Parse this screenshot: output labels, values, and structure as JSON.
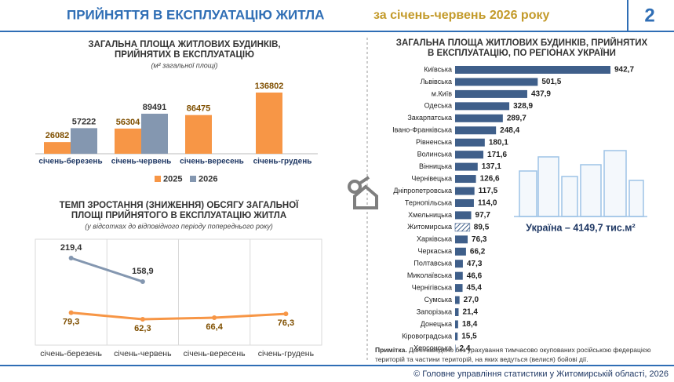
{
  "header": {
    "title": "ПРИЙНЯТТЯ В ЕКСПЛУАТАЦІЮ ЖИТЛА",
    "subtitle": "за січень-червень  2026 року",
    "page": "2"
  },
  "chart_data": [
    {
      "type": "bar",
      "title": [
        "ЗАГАЛЬНА ПЛОЩА ЖИТЛОВИХ БУДИНКІВ,",
        "ПРИЙНЯТИХ В ЕКСПЛУАТАЦІЮ"
      ],
      "subtitle": "(м² загальної площі)",
      "categories": [
        "січень-березень",
        "січень-червень",
        "січень-вересень",
        "січень-грудень"
      ],
      "series": [
        {
          "name": "2025",
          "color": "#f79646",
          "values": [
            26082,
            56304,
            86475,
            136802
          ]
        },
        {
          "name": "2026",
          "color": "#8497b0",
          "values": [
            57222,
            89491,
            null,
            null
          ]
        }
      ]
    },
    {
      "type": "line",
      "title": [
        "ТЕМП ЗРОСТАННЯ (ЗНИЖЕННЯ) ОБСЯГУ ЗАГАЛЬНОЇ",
        "ПЛОЩІ ПРИЙНЯТОГО В ЕКСПЛУАТАЦІЮ ЖИТЛА"
      ],
      "subtitle": "(у відсотках до відповідного періоду попереднього року)",
      "categories": [
        "січень-березень",
        "січень-червень",
        "січень-вересень",
        "січень-грудень"
      ],
      "series": [
        {
          "color": "#f79646",
          "values": [
            79.3,
            62.3,
            66.4,
            76.3
          ],
          "value_labels": [
            "79,3",
            "62,3",
            "66,4",
            "76,3"
          ]
        },
        {
          "color": "#8497b0",
          "values": [
            219.4,
            158.9,
            null,
            null
          ],
          "value_labels": [
            "219,4",
            "158,9",
            null,
            null
          ]
        }
      ]
    },
    {
      "type": "barh",
      "title": [
        "ЗАГАЛЬНА ПЛОЩА ЖИТЛОВИХ БУДИНКІВ, ПРИЙНЯТИХ",
        "В ЕКСПЛУАТАЦІЮ, ПО РЕГІОНАХ УКРАЇНИ"
      ],
      "categories": [
        "Київська",
        "Львівська",
        "м.Київ",
        "Одеська",
        "Закарпатська",
        "Івано-Франківська",
        "Рівненська",
        "Волинська",
        "Вінницька",
        "Чернівецька",
        "Дніпропетровська",
        "Тернопільська",
        "Хмельницька",
        "Житомирська",
        "Харківська",
        "Черкаська",
        "Полтавська",
        "Миколаївська",
        "Чернігівська",
        "Сумська",
        "Запорізька",
        "Донецька",
        "Кіровоградська",
        "Херсонська"
      ],
      "values": [
        942.7,
        501.5,
        437.9,
        328.9,
        289.7,
        248.4,
        180.1,
        171.6,
        137.1,
        126.6,
        117.5,
        114.0,
        97.7,
        89.5,
        76.3,
        66.2,
        47.3,
        46.6,
        45.4,
        27.0,
        21.4,
        18.4,
        15.5,
        2.4
      ],
      "value_labels": [
        "942,7",
        "501,5",
        "437,9",
        "328,9",
        "289,7",
        "248,4",
        "180,1",
        "171,6",
        "137,1",
        "126,6",
        "117,5",
        "114,0",
        "97,7",
        "89,5",
        "76,3",
        "66,2",
        "47,3",
        "46,6",
        "45,4",
        "27,0",
        "21,4",
        "18,4",
        "15,5",
        "2,4"
      ],
      "color": "#3f5f8a",
      "highlight": 13,
      "annotation": "Україна – 4149,7 тис.м²"
    }
  ],
  "note": {
    "label": "Примітка.",
    "text": " Дані наведено без урахування тимчасово окупованих російською федерацією територій та частини територій, на яких ведуться (велися) бойові дії."
  },
  "footer": "© Головне управління статистики у Житомирській області, 2026"
}
